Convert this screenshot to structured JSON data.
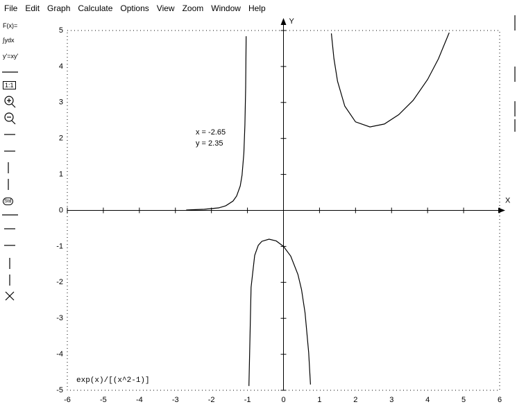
{
  "menu": [
    "File",
    "Edit",
    "Graph",
    "Calculate",
    "Options",
    "View",
    "Zoom",
    "Window",
    "Help"
  ],
  "toolbar": [
    "F(x)=",
    "∫ydx",
    "y'=xy'",
    "1:1",
    "Std"
  ],
  "chart_data": {
    "type": "line",
    "function_label": "exp(x)/[(x^2-1)]",
    "annotation": [
      "x = -2.65",
      "y = 2.35"
    ],
    "x_label": "X",
    "y_label": "Y",
    "x": [
      -2.7,
      -2.5,
      -2.2,
      -2,
      -1.8,
      -1.6,
      -1.4,
      -1.3,
      -1.2,
      -1.15,
      -1.1,
      -1.07,
      -1.05,
      -1.036,
      -1,
      -0.96,
      -0.9,
      -0.8,
      -0.7,
      -0.6,
      -0.4,
      -0.2,
      0,
      0.2,
      0.4,
      0.5,
      0.6,
      0.7,
      0.75,
      1,
      1.33,
      1.4,
      1.5,
      1.7,
      2,
      2.4,
      2.8,
      3.2,
      3.6,
      4,
      4.3,
      4.6
    ],
    "values": [
      0.01,
      0.02,
      0.03,
      0.05,
      0.07,
      0.13,
      0.26,
      0.4,
      0.68,
      0.98,
      1.59,
      2.37,
      3.41,
      4.84,
      null,
      -4.88,
      -2.14,
      -1.25,
      -0.97,
      -0.86,
      -0.8,
      -0.85,
      -1,
      -1.27,
      -1.78,
      -2.2,
      -2.85,
      -3.95,
      -4.84,
      null,
      4.92,
      4.22,
      3.59,
      2.9,
      2.46,
      2.32,
      2.4,
      2.66,
      3.06,
      3.64,
      4.21,
      4.94
    ],
    "color": "#000000",
    "xlim": [
      -6,
      6
    ],
    "ylim": [
      -5,
      5
    ],
    "xticks": [
      -6,
      -5,
      -4,
      -3,
      -2,
      -1,
      0,
      1,
      2,
      3,
      4,
      5,
      6
    ],
    "yticks": [
      -5,
      -4,
      -3,
      -2,
      -1,
      0,
      1,
      2,
      3,
      4,
      5
    ]
  }
}
